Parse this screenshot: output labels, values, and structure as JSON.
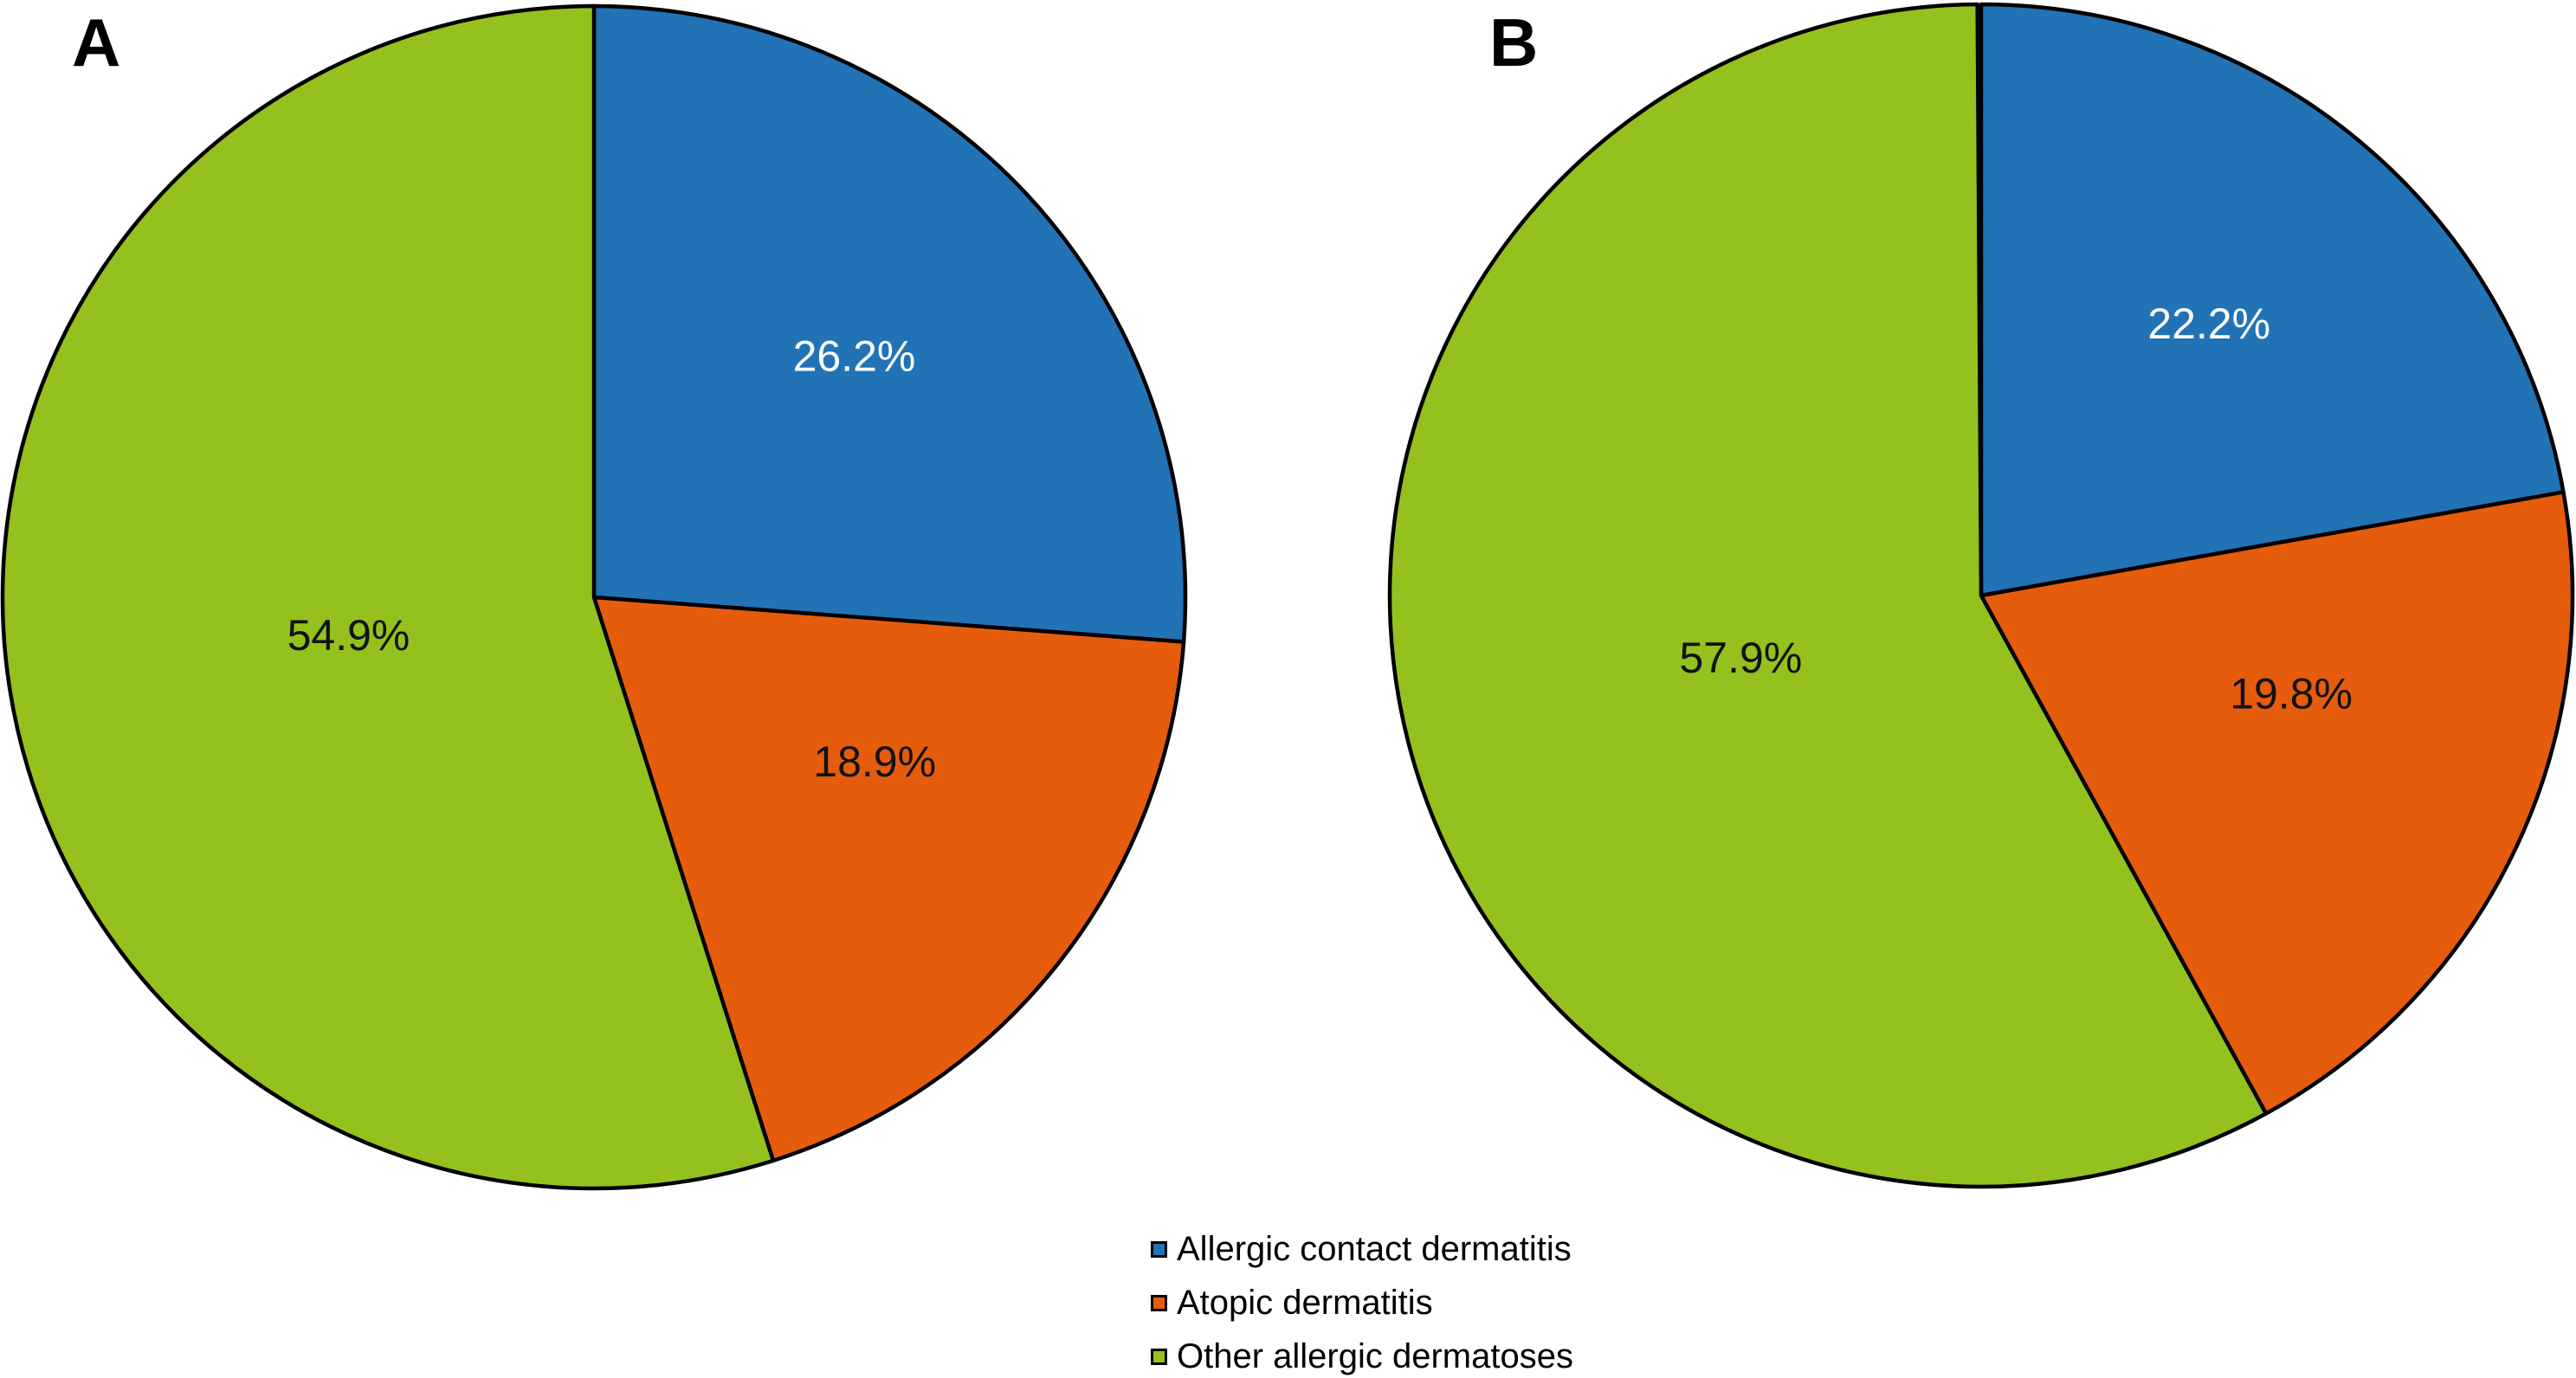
{
  "figure": {
    "background": "#ffffff",
    "panel_a_label": "A",
    "panel_b_label": "B"
  },
  "legend": {
    "position": "bottom-center",
    "items": [
      {
        "label": "Allergic contact dermatitis",
        "color": "#2173b6"
      },
      {
        "label": "Atopic dermatitis",
        "color": "#e65c0d"
      },
      {
        "label": "Other allergic dermatoses",
        "color": "#94c11e"
      }
    ]
  },
  "chart_data": [
    {
      "type": "pie",
      "panel_label": "A",
      "start_angle_deg": 90,
      "direction": "clockwise",
      "outline_color": "#000000",
      "slices": [
        {
          "category": "Allergic contact dermatitis",
          "value_pct": 26.2,
          "label": "26.2%",
          "color": "#2173b6",
          "label_color": "#ffffff"
        },
        {
          "category": "Atopic dermatitis",
          "value_pct": 18.9,
          "label": "18.9%",
          "color": "#e65c0d",
          "label_color": "#111111"
        },
        {
          "category": "Other allergic dermatoses",
          "value_pct": 54.9,
          "label": "54.9%",
          "color": "#94c11e",
          "label_color": "#111111"
        }
      ]
    },
    {
      "type": "pie",
      "panel_label": "B",
      "start_angle_deg": 90,
      "direction": "clockwise",
      "outline_color": "#000000",
      "slices": [
        {
          "category": "Allergic contact dermatitis",
          "value_pct": 22.2,
          "label": "22.2%",
          "color": "#2173b6",
          "label_color": "#ffffff"
        },
        {
          "category": "Atopic dermatitis",
          "value_pct": 19.8,
          "label": "19.8%",
          "color": "#e65c0d",
          "label_color": "#111111"
        },
        {
          "category": "Other allergic dermatoses",
          "value_pct": 57.9,
          "label": "57.9%",
          "color": "#94c11e",
          "label_color": "#111111"
        }
      ]
    }
  ]
}
